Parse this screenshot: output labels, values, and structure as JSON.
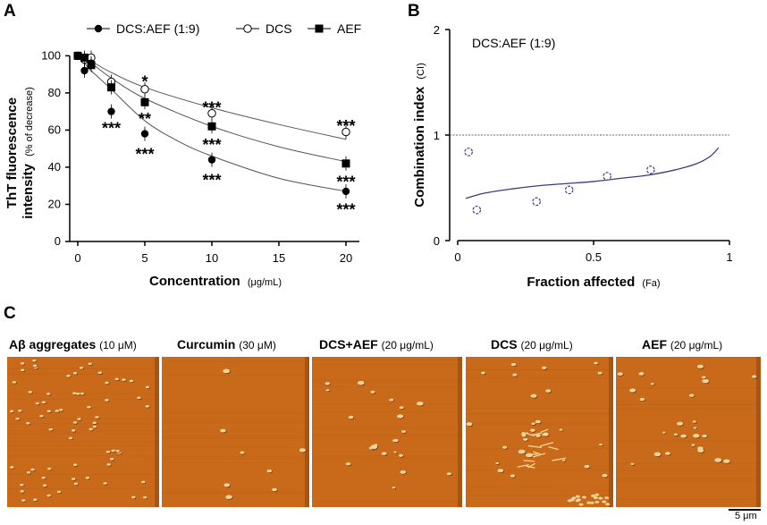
{
  "panels": {
    "a": "A",
    "b": "B",
    "c": "C"
  },
  "chart_data": [
    {
      "type": "scatter",
      "panel": "A",
      "xlabel": "Concentration",
      "xlabel_unit": "(μg/mL)",
      "ylabel_line1": "ThT fluorescence",
      "ylabel_line2": "intensity",
      "ylabel_unit": "(% of decrease)",
      "xlim": [
        0,
        21
      ],
      "ylim": [
        0,
        105
      ],
      "xticks": [
        0,
        5,
        10,
        15,
        20
      ],
      "yticks": [
        0,
        20,
        40,
        60,
        80,
        100
      ],
      "legend_labels": [
        "DCS:AEF (1:9)",
        "DCS",
        "AEF"
      ],
      "series": [
        {
          "name": "DCS:AEF (1:9)",
          "marker": "filled-circle",
          "x": [
            0,
            0.5,
            1,
            2.5,
            5,
            10,
            20
          ],
          "y": [
            100,
            92,
            96,
            70,
            58,
            44,
            27
          ],
          "fit": [
            [
              0,
              100
            ],
            [
              0.5,
              96
            ],
            [
              1,
              92
            ],
            [
              2.5,
              82
            ],
            [
              5,
              65
            ],
            [
              7.5,
              54
            ],
            [
              10,
              46
            ],
            [
              15,
              34
            ],
            [
              20,
              27
            ]
          ]
        },
        {
          "name": "DCS",
          "marker": "open-circle",
          "x": [
            0,
            0.5,
            1,
            2.5,
            5,
            10,
            20
          ],
          "y": [
            100,
            98,
            99,
            86,
            82,
            69,
            59
          ],
          "fit": [
            [
              0,
              100
            ],
            [
              1,
              97
            ],
            [
              2.5,
              91
            ],
            [
              5,
              83
            ],
            [
              10,
              72
            ],
            [
              15,
              63
            ],
            [
              20,
              55
            ]
          ]
        },
        {
          "name": "AEF",
          "marker": "filled-square",
          "x": [
            0,
            0.5,
            1,
            2.5,
            5,
            10,
            20
          ],
          "y": [
            100,
            99,
            95,
            83,
            75,
            62,
            42
          ],
          "fit": [
            [
              0,
              100
            ],
            [
              1,
              96
            ],
            [
              2.5,
              88
            ],
            [
              5,
              77
            ],
            [
              10,
              62
            ],
            [
              15,
              51
            ],
            [
              20,
              43
            ]
          ]
        }
      ],
      "annotations": [
        {
          "x": 2.5,
          "y": 62,
          "text": "***"
        },
        {
          "x": 5,
          "y": 87,
          "text": "*"
        },
        {
          "x": 5,
          "y": 67,
          "text": "**"
        },
        {
          "x": 5,
          "y": 48,
          "text": "***"
        },
        {
          "x": 10,
          "y": 73,
          "text": "***"
        },
        {
          "x": 10,
          "y": 53,
          "text": "***"
        },
        {
          "x": 10,
          "y": 34,
          "text": "***"
        },
        {
          "x": 20,
          "y": 63,
          "text": "***"
        },
        {
          "x": 20,
          "y": 33,
          "text": "***"
        },
        {
          "x": 20,
          "y": 18,
          "text": "***"
        }
      ]
    },
    {
      "type": "scatter",
      "panel": "B",
      "title": "DCS:AEF (1:9)",
      "xlabel": "Fraction affected",
      "xlabel_unit": "(Fa)",
      "ylabel": "Combination index",
      "ylabel_unit": "(CI)",
      "xlim": [
        0,
        1
      ],
      "ylim": [
        0,
        2
      ],
      "xticks": [
        0,
        0.5,
        1
      ],
      "xtick_labels": [
        "0",
        "0.5",
        "1"
      ],
      "yticks": [
        0,
        1,
        2
      ],
      "reference_line": 1,
      "points": {
        "x": [
          0.04,
          0.07,
          0.29,
          0.41,
          0.55,
          0.71
        ],
        "y": [
          0.84,
          0.29,
          0.37,
          0.48,
          0.61,
          0.67
        ]
      },
      "curve": [
        [
          0.03,
          0.4
        ],
        [
          0.1,
          0.45
        ],
        [
          0.2,
          0.49
        ],
        [
          0.3,
          0.52
        ],
        [
          0.4,
          0.54
        ],
        [
          0.5,
          0.56
        ],
        [
          0.6,
          0.59
        ],
        [
          0.7,
          0.62
        ],
        [
          0.8,
          0.67
        ],
        [
          0.88,
          0.73
        ],
        [
          0.93,
          0.8
        ],
        [
          0.96,
          0.88
        ]
      ]
    }
  ],
  "afm": {
    "titles": [
      {
        "name": "Aβ aggregates",
        "conc": "(10 μM)"
      },
      {
        "name": "Curcumin",
        "conc": "(30 μM)"
      },
      {
        "name": "DCS+AEF",
        "conc": "(20 μg/mL)"
      },
      {
        "name": "DCS",
        "conc": "(20 μg/mL)"
      },
      {
        "name": "AEF",
        "conc": "(20 μg/mL)"
      }
    ],
    "scale_bar": "5 μm",
    "colors": {
      "base": "#c96a1a",
      "edge": "#8a3e08",
      "particle": "#f3d49a",
      "shadow": "#5a2506"
    }
  }
}
